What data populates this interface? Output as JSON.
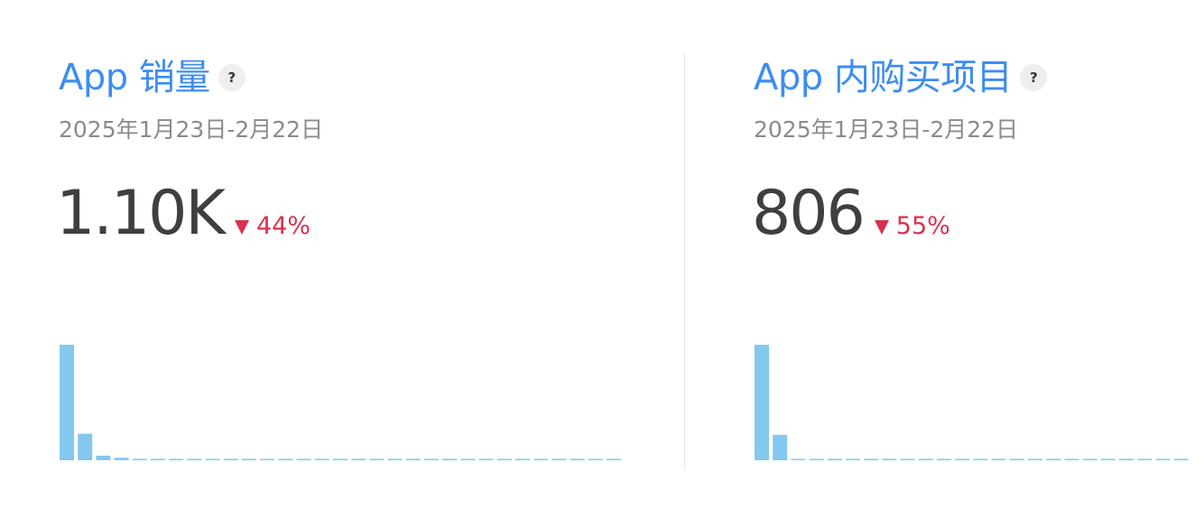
{
  "cards": [
    {
      "title": "App 销量",
      "help": "?",
      "date": "2025年1月23日-2月22日",
      "metric": "1.10K",
      "change": "44%",
      "change_direction": "down",
      "chart_data": {
        "type": "bar",
        "values": [
          100,
          23,
          4,
          2.2,
          1.2,
          1.2,
          1.2,
          1.2,
          1.2,
          1.2,
          1.2,
          1.2,
          1.2,
          1.2,
          1.2,
          1.2,
          1.2,
          1.2,
          1.2,
          1.2,
          1.2,
          1.2,
          1.2,
          1.2,
          1.2,
          1.2,
          1.2,
          1.2,
          1.2,
          1.2,
          1.2
        ],
        "ylim": [
          0,
          100
        ],
        "title": "",
        "xlabel": "",
        "ylabel": ""
      }
    },
    {
      "title": "App 内购买项目",
      "help": "?",
      "date": "2025年1月23日-2月22日",
      "metric": "806",
      "change": "55%",
      "change_direction": "down",
      "chart_data": {
        "type": "bar",
        "values": [
          100,
          22,
          1.2,
          1.2,
          1.2,
          1.2,
          1.2,
          1.2,
          1.2,
          1.2,
          1.2,
          1.2,
          1.2,
          1.2,
          1.2,
          1.2,
          1.2,
          1.2,
          1.2,
          1.2,
          1.2,
          1.2,
          1.2,
          1.2,
          1.2
        ],
        "ylim": [
          0,
          100
        ],
        "title": "",
        "xlabel": "",
        "ylabel": ""
      }
    }
  ],
  "colors": {
    "accent": "#3e8df0",
    "bar": "#84c7ef",
    "metric": "#3f3f3f",
    "date": "#8b8b8b",
    "negative": "#d9304f",
    "help_bg": "#eeeeee",
    "divider": "#e3e3e3"
  },
  "icons": {
    "help": "question-mark-icon",
    "change": "triangle-down-icon"
  }
}
